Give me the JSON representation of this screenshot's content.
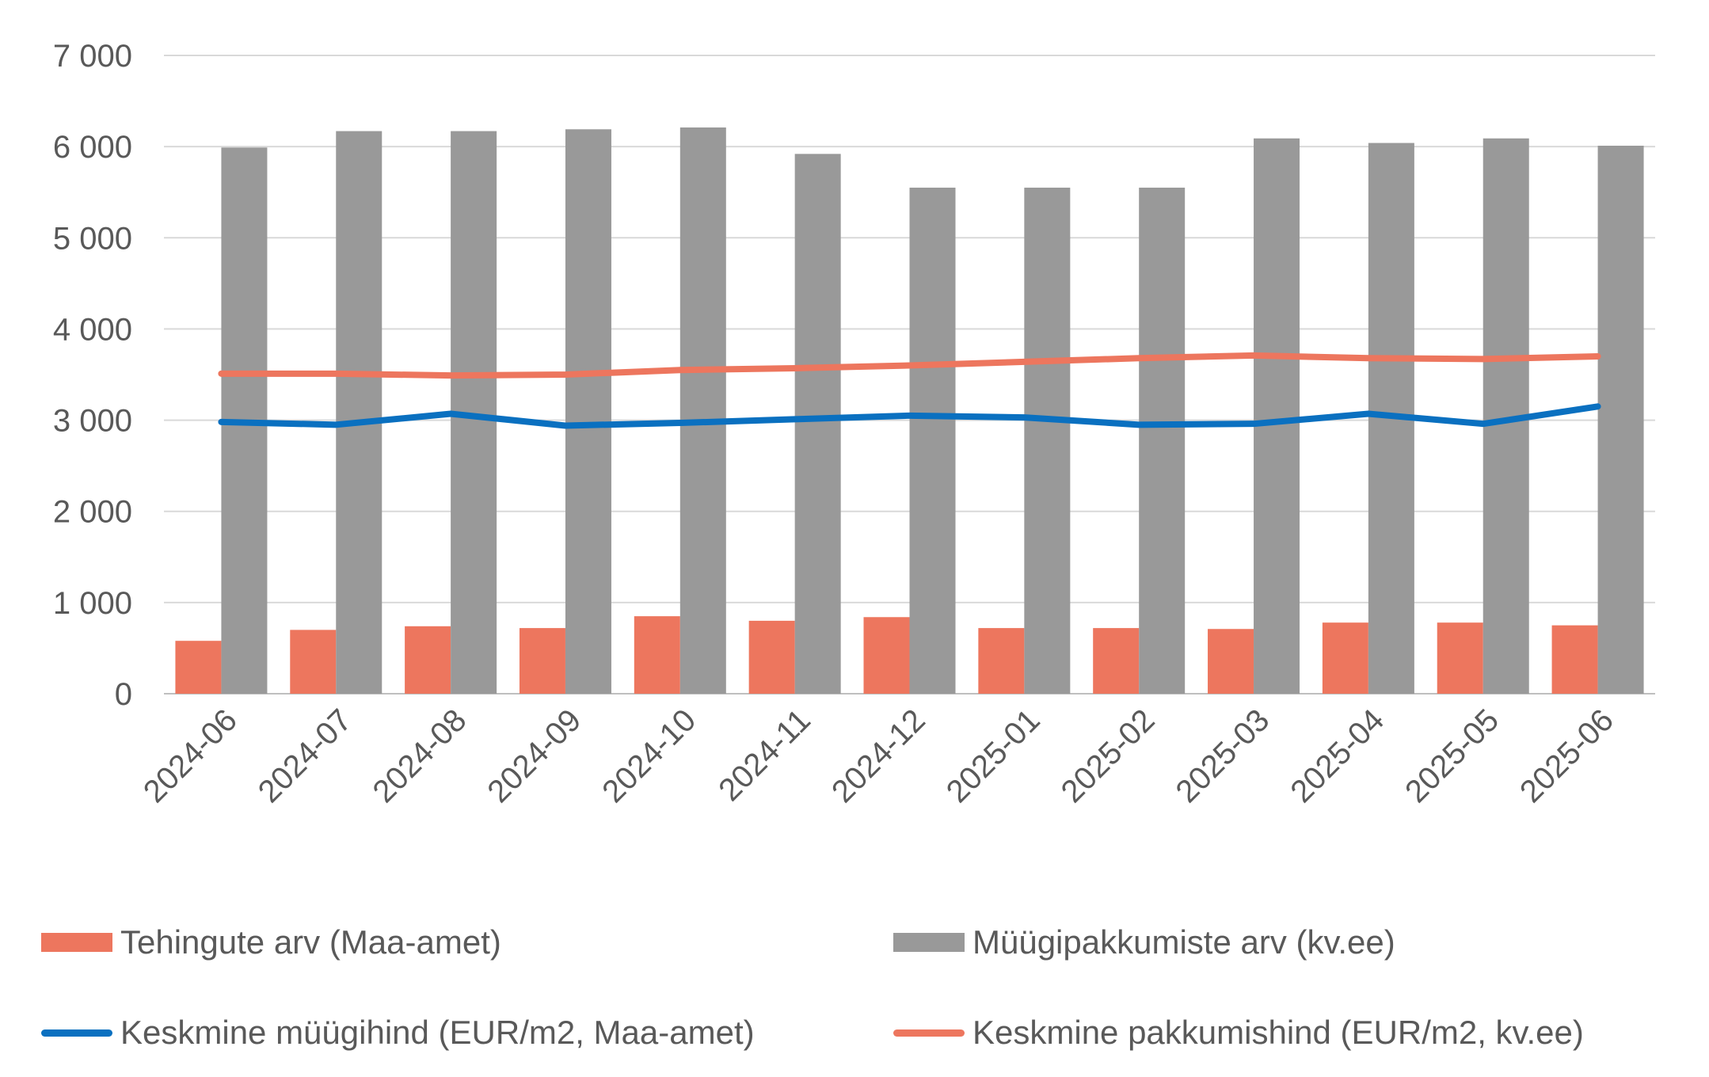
{
  "chart_data": {
    "type": "bar",
    "categories": [
      "2024-06",
      "2024-07",
      "2024-08",
      "2024-09",
      "2024-10",
      "2024-11",
      "2024-12",
      "2025-01",
      "2025-02",
      "2025-03",
      "2025-04",
      "2025-05",
      "2025-06"
    ],
    "y_tick_labels": [
      "0",
      "1 000",
      "2 000",
      "3 000",
      "4 000",
      "5 000",
      "6 000",
      "7 000"
    ],
    "ylim": [
      0,
      7000
    ],
    "grid": true,
    "legend_position": "bottom",
    "bar_series": [
      {
        "name": "Tehingute arv (Maa-amet)",
        "color": "#ED765E",
        "values": [
          580,
          700,
          740,
          720,
          850,
          800,
          840,
          720,
          720,
          710,
          780,
          780,
          750
        ]
      },
      {
        "name": "Müügipakkumiste arv (kv.ee)",
        "color": "#999999",
        "values": [
          5990,
          6170,
          6170,
          6190,
          6210,
          5920,
          5550,
          5550,
          5550,
          6090,
          6040,
          6090,
          6010
        ]
      }
    ],
    "line_series": [
      {
        "name": "Keskmine müügihind (EUR/m2, Maa-amet)",
        "color": "#0A70C0",
        "values": [
          2980,
          2950,
          3070,
          2940,
          2970,
          3010,
          3050,
          3030,
          2950,
          2960,
          3070,
          2960,
          3150
        ]
      },
      {
        "name": "Keskmine pakkumishind (EUR/m2, kv.ee)",
        "color": "#ED765E",
        "values": [
          3510,
          3510,
          3490,
          3500,
          3550,
          3570,
          3600,
          3640,
          3680,
          3710,
          3680,
          3670,
          3700
        ]
      }
    ]
  }
}
